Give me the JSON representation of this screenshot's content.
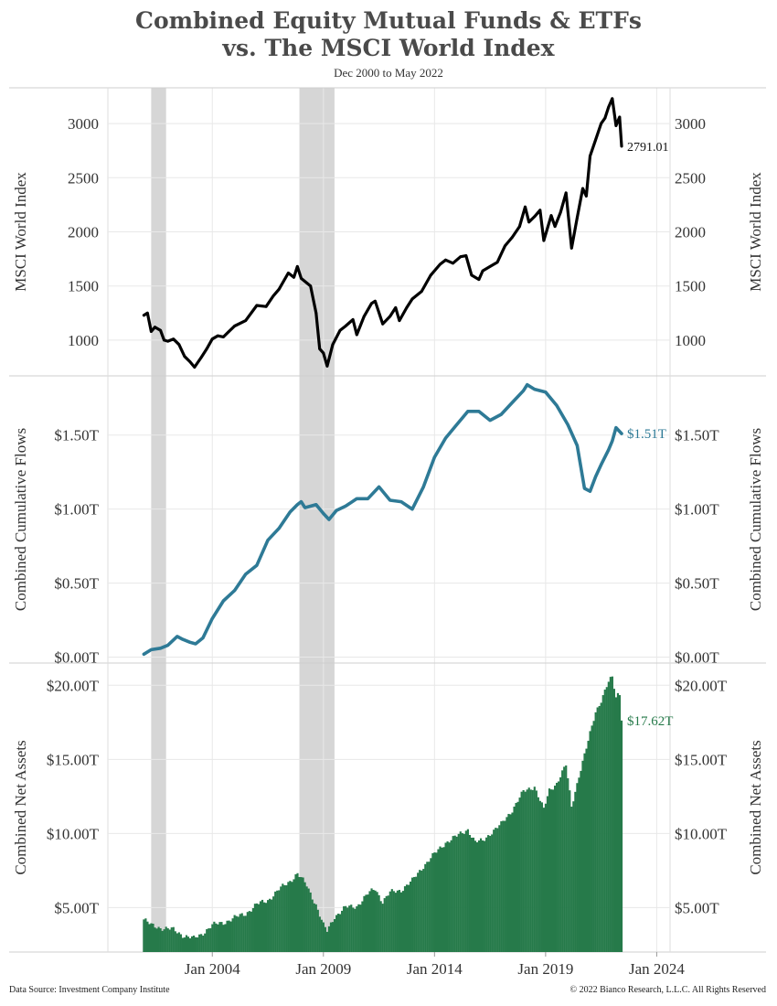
{
  "header": {
    "title_line1": "Combined Equity Mutual Funds & ETFs",
    "title_line2": "vs. The MSCI World Index",
    "subtitle": "Dec 2000 to May 2022"
  },
  "footer": {
    "source": "Data Source: Investment Company Institute",
    "copyright": "© 2022 Bianco Research, L.L.C. All Rights Reserved"
  },
  "colors": {
    "msci": "#000000",
    "flows": "#2e7a96",
    "assets": "#267a4a",
    "recession": "#d6d6d6",
    "grid": "#e8e8e8"
  },
  "chart_data": {
    "type": "line",
    "x_axis": {
      "ticks": [
        {
          "year": 2004.0,
          "label": "Jan 2004"
        },
        {
          "year": 2009.0,
          "label": "Jan 2009"
        },
        {
          "year": 2014.0,
          "label": "Jan 2014"
        },
        {
          "year": 2019.0,
          "label": "Jan 2019"
        },
        {
          "year": 2024.0,
          "label": "Jan 2024"
        }
      ],
      "range": [
        1999.3,
        2024.6
      ]
    },
    "recessions": [
      [
        2001.25,
        2001.92
      ],
      [
        2007.92,
        2009.5
      ]
    ],
    "panels": [
      {
        "type": "line",
        "ylabel": "MSCI World Index",
        "ylim": [
          670,
          3330
        ],
        "ticks": [
          {
            "v": 1000,
            "label": "1000"
          },
          {
            "v": 1500,
            "label": "1500"
          },
          {
            "v": 2000,
            "label": "2000"
          },
          {
            "v": 2500,
            "label": "2500"
          },
          {
            "v": 3000,
            "label": "3000"
          }
        ],
        "end_label": "2791.01",
        "series": [
          {
            "x": 2000.92,
            "y": 1230
          },
          {
            "x": 2001.08,
            "y": 1250
          },
          {
            "x": 2001.25,
            "y": 1080
          },
          {
            "x": 2001.42,
            "y": 1120
          },
          {
            "x": 2001.67,
            "y": 1090
          },
          {
            "x": 2001.83,
            "y": 1000
          },
          {
            "x": 2002.0,
            "y": 990
          },
          {
            "x": 2002.25,
            "y": 1010
          },
          {
            "x": 2002.5,
            "y": 960
          },
          {
            "x": 2002.75,
            "y": 850
          },
          {
            "x": 2003.0,
            "y": 800
          },
          {
            "x": 2003.2,
            "y": 750
          },
          {
            "x": 2003.5,
            "y": 840
          },
          {
            "x": 2003.75,
            "y": 920
          },
          {
            "x": 2004.0,
            "y": 1010
          },
          {
            "x": 2004.25,
            "y": 1040
          },
          {
            "x": 2004.5,
            "y": 1030
          },
          {
            "x": 2004.75,
            "y": 1080
          },
          {
            "x": 2005.0,
            "y": 1130
          },
          {
            "x": 2005.5,
            "y": 1180
          },
          {
            "x": 2006.0,
            "y": 1320
          },
          {
            "x": 2006.42,
            "y": 1310
          },
          {
            "x": 2006.75,
            "y": 1410
          },
          {
            "x": 2007.0,
            "y": 1470
          },
          {
            "x": 2007.42,
            "y": 1620
          },
          {
            "x": 2007.67,
            "y": 1580
          },
          {
            "x": 2007.83,
            "y": 1680
          },
          {
            "x": 2008.0,
            "y": 1570
          },
          {
            "x": 2008.42,
            "y": 1500
          },
          {
            "x": 2008.67,
            "y": 1250
          },
          {
            "x": 2008.83,
            "y": 920
          },
          {
            "x": 2009.0,
            "y": 880
          },
          {
            "x": 2009.17,
            "y": 760
          },
          {
            "x": 2009.42,
            "y": 960
          },
          {
            "x": 2009.75,
            "y": 1090
          },
          {
            "x": 2010.0,
            "y": 1130
          },
          {
            "x": 2010.33,
            "y": 1190
          },
          {
            "x": 2010.5,
            "y": 1050
          },
          {
            "x": 2010.83,
            "y": 1220
          },
          {
            "x": 2011.17,
            "y": 1340
          },
          {
            "x": 2011.33,
            "y": 1360
          },
          {
            "x": 2011.67,
            "y": 1150
          },
          {
            "x": 2012.0,
            "y": 1220
          },
          {
            "x": 2012.25,
            "y": 1300
          },
          {
            "x": 2012.42,
            "y": 1180
          },
          {
            "x": 2012.75,
            "y": 1300
          },
          {
            "x": 2013.0,
            "y": 1380
          },
          {
            "x": 2013.42,
            "y": 1450
          },
          {
            "x": 2013.83,
            "y": 1600
          },
          {
            "x": 2014.25,
            "y": 1700
          },
          {
            "x": 2014.5,
            "y": 1740
          },
          {
            "x": 2014.83,
            "y": 1710
          },
          {
            "x": 2015.17,
            "y": 1770
          },
          {
            "x": 2015.42,
            "y": 1780
          },
          {
            "x": 2015.67,
            "y": 1600
          },
          {
            "x": 2016.0,
            "y": 1560
          },
          {
            "x": 2016.17,
            "y": 1640
          },
          {
            "x": 2016.5,
            "y": 1680
          },
          {
            "x": 2016.83,
            "y": 1720
          },
          {
            "x": 2017.17,
            "y": 1870
          },
          {
            "x": 2017.5,
            "y": 1950
          },
          {
            "x": 2017.83,
            "y": 2050
          },
          {
            "x": 2018.08,
            "y": 2230
          },
          {
            "x": 2018.25,
            "y": 2090
          },
          {
            "x": 2018.5,
            "y": 2140
          },
          {
            "x": 2018.75,
            "y": 2200
          },
          {
            "x": 2018.92,
            "y": 1920
          },
          {
            "x": 2019.25,
            "y": 2150
          },
          {
            "x": 2019.42,
            "y": 2050
          },
          {
            "x": 2019.67,
            "y": 2180
          },
          {
            "x": 2019.92,
            "y": 2360
          },
          {
            "x": 2020.17,
            "y": 1850
          },
          {
            "x": 2020.42,
            "y": 2130
          },
          {
            "x": 2020.67,
            "y": 2400
          },
          {
            "x": 2020.83,
            "y": 2330
          },
          {
            "x": 2021.0,
            "y": 2700
          },
          {
            "x": 2021.25,
            "y": 2850
          },
          {
            "x": 2021.5,
            "y": 3000
          },
          {
            "x": 2021.67,
            "y": 3050
          },
          {
            "x": 2021.83,
            "y": 3150
          },
          {
            "x": 2022.0,
            "y": 3230
          },
          {
            "x": 2022.17,
            "y": 2980
          },
          {
            "x": 2022.33,
            "y": 3060
          },
          {
            "x": 2022.42,
            "y": 2791.01
          }
        ]
      },
      {
        "type": "line",
        "ylabel": "Combined Cumulative Flows",
        "ylim": [
          -0.04,
          1.9
        ],
        "ticks": [
          {
            "v": 0.0,
            "label": "$0.00T"
          },
          {
            "v": 0.5,
            "label": "$0.50T"
          },
          {
            "v": 1.0,
            "label": "$1.00T"
          },
          {
            "v": 1.5,
            "label": "$1.50T"
          }
        ],
        "end_label": "$1.51T",
        "series": [
          {
            "x": 2000.92,
            "y": 0.02
          },
          {
            "x": 2001.25,
            "y": 0.05
          },
          {
            "x": 2001.67,
            "y": 0.06
          },
          {
            "x": 2002.0,
            "y": 0.08
          },
          {
            "x": 2002.42,
            "y": 0.14
          },
          {
            "x": 2002.67,
            "y": 0.12
          },
          {
            "x": 2003.0,
            "y": 0.1
          },
          {
            "x": 2003.25,
            "y": 0.09
          },
          {
            "x": 2003.58,
            "y": 0.13
          },
          {
            "x": 2004.0,
            "y": 0.26
          },
          {
            "x": 2004.5,
            "y": 0.38
          },
          {
            "x": 2005.0,
            "y": 0.45
          },
          {
            "x": 2005.5,
            "y": 0.56
          },
          {
            "x": 2006.0,
            "y": 0.62
          },
          {
            "x": 2006.5,
            "y": 0.79
          },
          {
            "x": 2007.0,
            "y": 0.87
          },
          {
            "x": 2007.5,
            "y": 0.98
          },
          {
            "x": 2007.83,
            "y": 1.03
          },
          {
            "x": 2008.0,
            "y": 1.05
          },
          {
            "x": 2008.17,
            "y": 1.01
          },
          {
            "x": 2008.67,
            "y": 1.03
          },
          {
            "x": 2009.0,
            "y": 0.97
          },
          {
            "x": 2009.25,
            "y": 0.93
          },
          {
            "x": 2009.58,
            "y": 0.99
          },
          {
            "x": 2010.0,
            "y": 1.02
          },
          {
            "x": 2010.5,
            "y": 1.07
          },
          {
            "x": 2011.0,
            "y": 1.07
          },
          {
            "x": 2011.5,
            "y": 1.15
          },
          {
            "x": 2012.0,
            "y": 1.06
          },
          {
            "x": 2012.5,
            "y": 1.05
          },
          {
            "x": 2013.0,
            "y": 1.0
          },
          {
            "x": 2013.5,
            "y": 1.15
          },
          {
            "x": 2014.0,
            "y": 1.35
          },
          {
            "x": 2014.5,
            "y": 1.48
          },
          {
            "x": 2015.0,
            "y": 1.57
          },
          {
            "x": 2015.5,
            "y": 1.66
          },
          {
            "x": 2016.0,
            "y": 1.66
          },
          {
            "x": 2016.5,
            "y": 1.6
          },
          {
            "x": 2017.0,
            "y": 1.64
          },
          {
            "x": 2017.5,
            "y": 1.72
          },
          {
            "x": 2018.0,
            "y": 1.8
          },
          {
            "x": 2018.17,
            "y": 1.84
          },
          {
            "x": 2018.5,
            "y": 1.81
          },
          {
            "x": 2019.0,
            "y": 1.79
          },
          {
            "x": 2019.5,
            "y": 1.7
          },
          {
            "x": 2020.0,
            "y": 1.57
          },
          {
            "x": 2020.42,
            "y": 1.43
          },
          {
            "x": 2020.75,
            "y": 1.14
          },
          {
            "x": 2021.0,
            "y": 1.12
          },
          {
            "x": 2021.25,
            "y": 1.22
          },
          {
            "x": 2021.5,
            "y": 1.3
          },
          {
            "x": 2021.83,
            "y": 1.4
          },
          {
            "x": 2022.0,
            "y": 1.46
          },
          {
            "x": 2022.17,
            "y": 1.55
          },
          {
            "x": 2022.42,
            "y": 1.51
          }
        ]
      },
      {
        "type": "bar",
        "ylabel": "Combined Net Assets",
        "ylim": [
          2.0,
          21.5
        ],
        "ticks": [
          {
            "v": 5,
            "label": "$5.00T"
          },
          {
            "v": 10,
            "label": "$10.00T"
          },
          {
            "v": 15,
            "label": "$15.00T"
          },
          {
            "v": 20,
            "label": "$20.00T"
          }
        ],
        "end_label": "$17.62T",
        "series": [
          {
            "x": 2000.92,
            "y": 4.2
          },
          {
            "x": 2001.25,
            "y": 3.8
          },
          {
            "x": 2001.83,
            "y": 3.6
          },
          {
            "x": 2002.25,
            "y": 3.5
          },
          {
            "x": 2002.75,
            "y": 3.1
          },
          {
            "x": 2003.17,
            "y": 2.9
          },
          {
            "x": 2003.5,
            "y": 3.2
          },
          {
            "x": 2004.0,
            "y": 3.8
          },
          {
            "x": 2004.5,
            "y": 4.0
          },
          {
            "x": 2005.0,
            "y": 4.3
          },
          {
            "x": 2005.5,
            "y": 4.6
          },
          {
            "x": 2006.0,
            "y": 5.2
          },
          {
            "x": 2006.5,
            "y": 5.5
          },
          {
            "x": 2007.0,
            "y": 6.2
          },
          {
            "x": 2007.5,
            "y": 6.8
          },
          {
            "x": 2007.83,
            "y": 7.3
          },
          {
            "x": 2008.25,
            "y": 6.5
          },
          {
            "x": 2008.67,
            "y": 5.2
          },
          {
            "x": 2009.0,
            "y": 3.8
          },
          {
            "x": 2009.17,
            "y": 3.4
          },
          {
            "x": 2009.5,
            "y": 4.4
          },
          {
            "x": 2010.0,
            "y": 5.0
          },
          {
            "x": 2010.5,
            "y": 5.1
          },
          {
            "x": 2011.0,
            "y": 5.9
          },
          {
            "x": 2011.33,
            "y": 6.3
          },
          {
            "x": 2011.67,
            "y": 5.4
          },
          {
            "x": 2012.0,
            "y": 6.0
          },
          {
            "x": 2012.5,
            "y": 6.2
          },
          {
            "x": 2013.0,
            "y": 6.8
          },
          {
            "x": 2013.5,
            "y": 7.8
          },
          {
            "x": 2014.0,
            "y": 8.6
          },
          {
            "x": 2014.5,
            "y": 9.4
          },
          {
            "x": 2015.0,
            "y": 9.8
          },
          {
            "x": 2015.5,
            "y": 10.3
          },
          {
            "x": 2015.83,
            "y": 9.4
          },
          {
            "x": 2016.17,
            "y": 9.5
          },
          {
            "x": 2016.5,
            "y": 10.0
          },
          {
            "x": 2017.0,
            "y": 10.6
          },
          {
            "x": 2017.5,
            "y": 11.6
          },
          {
            "x": 2018.0,
            "y": 12.8
          },
          {
            "x": 2018.5,
            "y": 13.2
          },
          {
            "x": 2018.92,
            "y": 11.6
          },
          {
            "x": 2019.17,
            "y": 12.9
          },
          {
            "x": 2019.5,
            "y": 13.4
          },
          {
            "x": 2019.92,
            "y": 14.6
          },
          {
            "x": 2020.17,
            "y": 11.8
          },
          {
            "x": 2020.5,
            "y": 13.9
          },
          {
            "x": 2020.92,
            "y": 16.2
          },
          {
            "x": 2021.25,
            "y": 18.2
          },
          {
            "x": 2021.5,
            "y": 19.0
          },
          {
            "x": 2021.83,
            "y": 20.2
          },
          {
            "x": 2022.0,
            "y": 20.5
          },
          {
            "x": 2022.17,
            "y": 19.2
          },
          {
            "x": 2022.33,
            "y": 19.6
          },
          {
            "x": 2022.42,
            "y": 17.62
          }
        ]
      }
    ]
  }
}
